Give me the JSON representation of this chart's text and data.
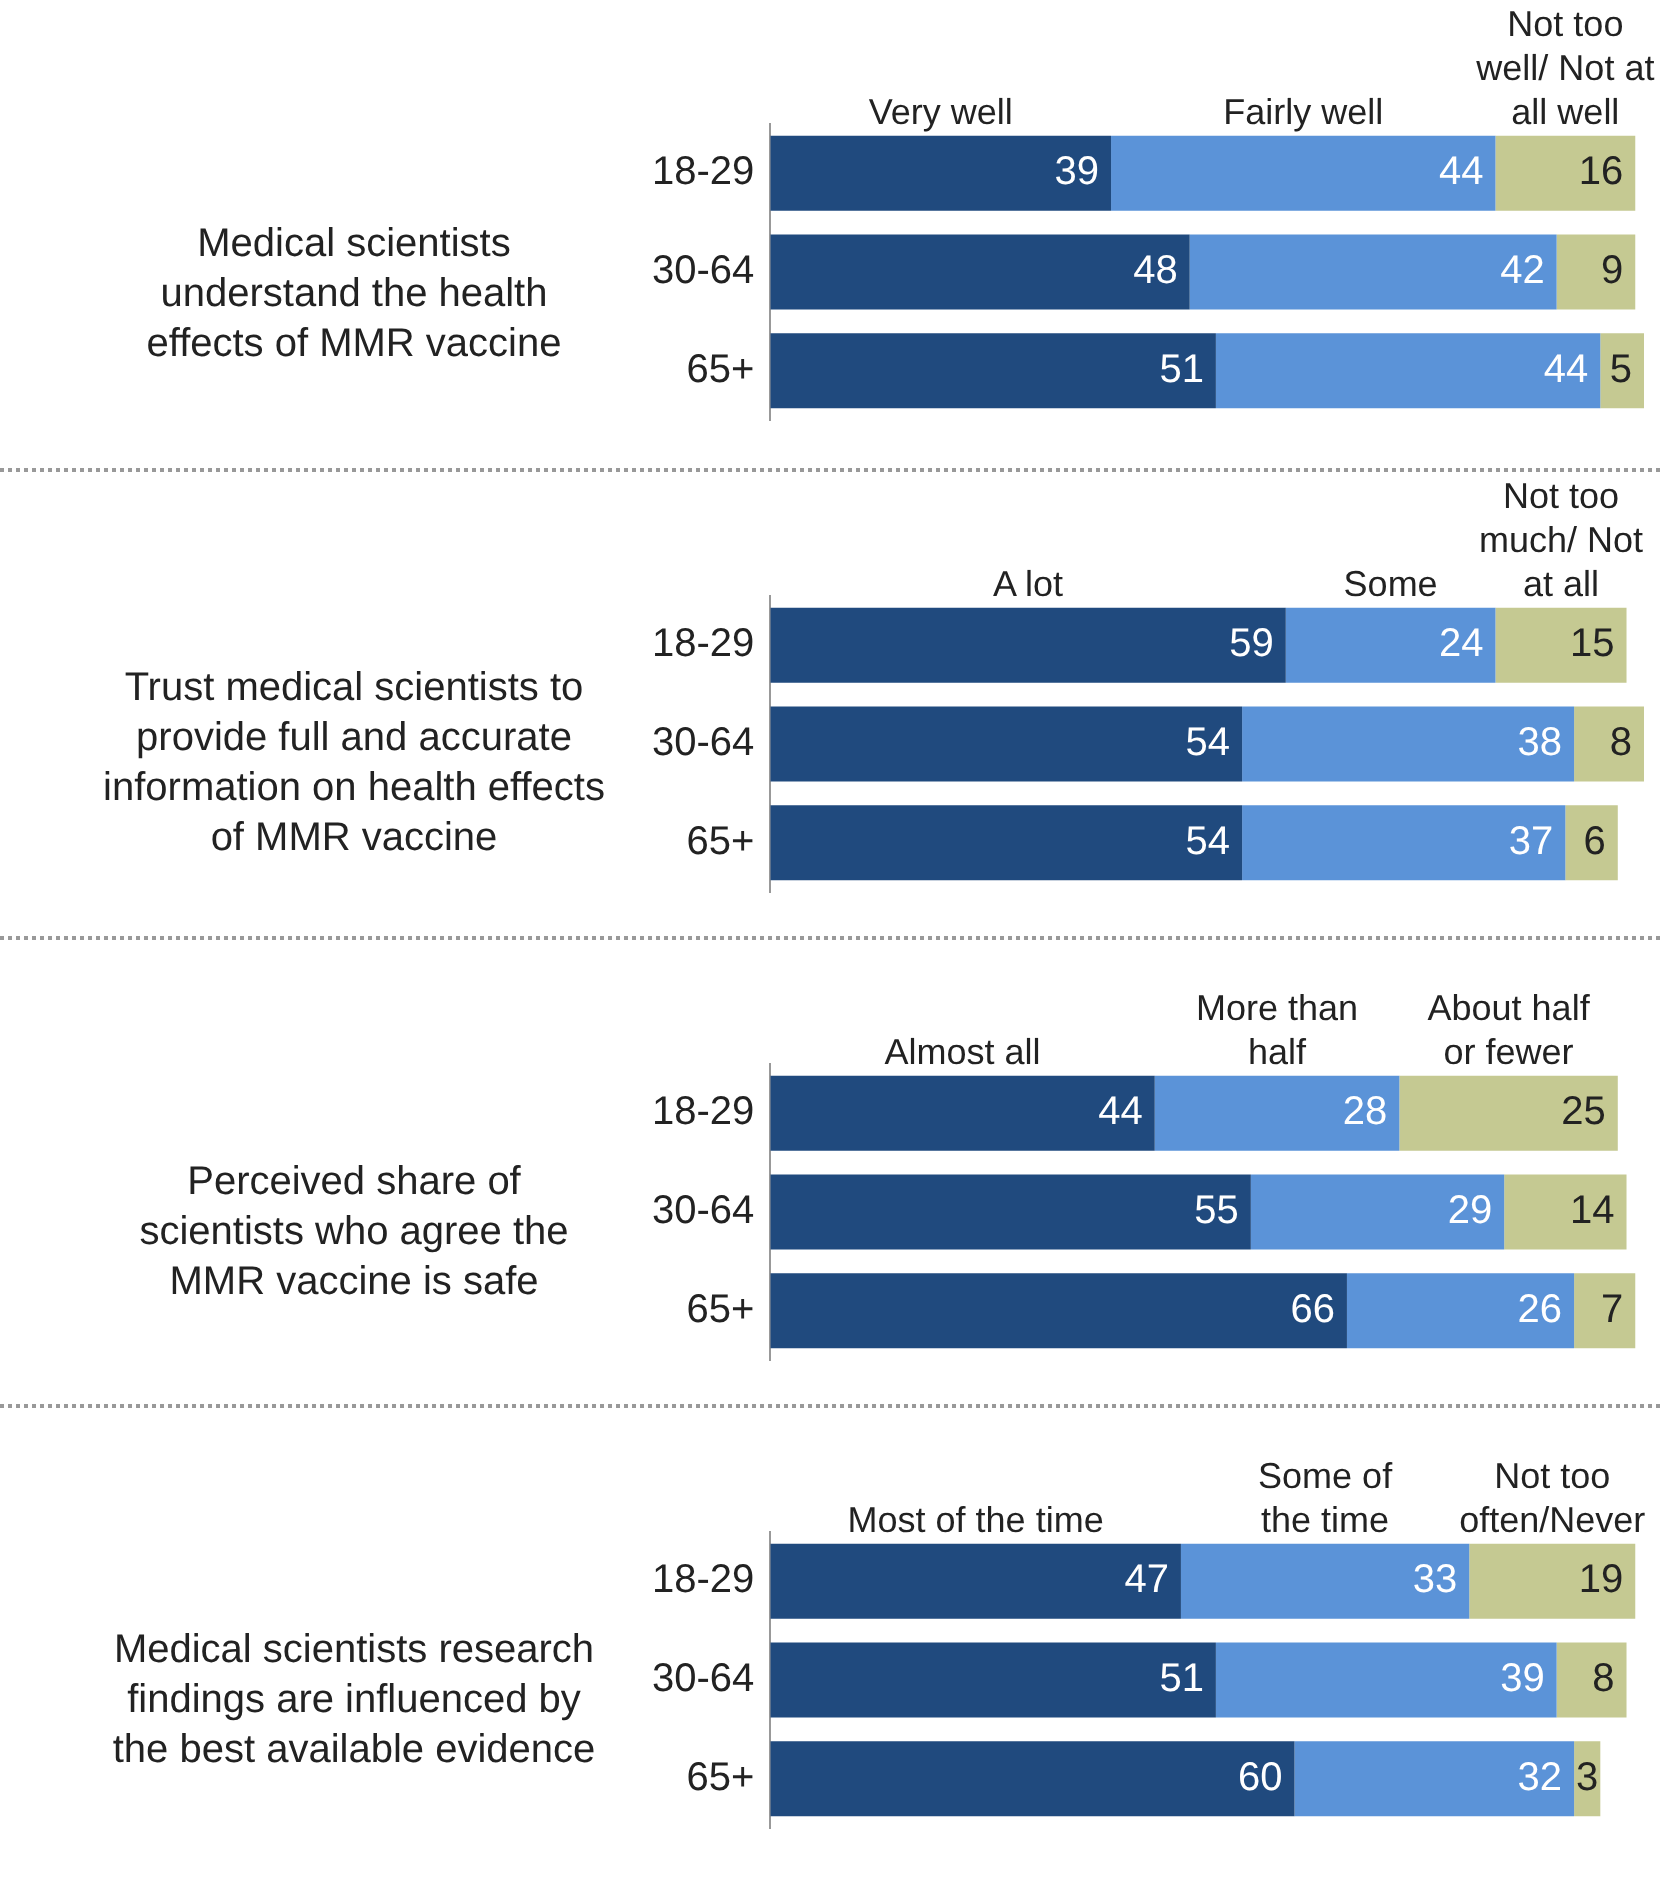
{
  "chart_data": [
    {
      "type": "bar",
      "orientation": "horizontal",
      "stacked": true,
      "data_labels": true,
      "tick_labels": "y",
      "title": "Medical scientists understand the health effects of MMR vaccine",
      "categories": [
        "18-29",
        "30-64",
        "65+"
      ],
      "series": [
        {
          "name": "Very well",
          "color": "#204a7e",
          "values": [
            39,
            48,
            51
          ]
        },
        {
          "name": "Fairly well",
          "color": "#5b93d8",
          "values": [
            44,
            42,
            44
          ]
        },
        {
          "name": "Not too well/ Not at all well",
          "color": "#c5c992",
          "values": [
            16,
            9,
            5
          ]
        }
      ]
    },
    {
      "type": "bar",
      "orientation": "horizontal",
      "stacked": true,
      "data_labels": true,
      "tick_labels": "y",
      "title": "Trust medical scientists to provide full and accurate information on health effects of MMR vaccine",
      "categories": [
        "18-29",
        "30-64",
        "65+"
      ],
      "series": [
        {
          "name": "A lot",
          "color": "#204a7e",
          "values": [
            59,
            54,
            54
          ]
        },
        {
          "name": "Some",
          "color": "#5b93d8",
          "values": [
            24,
            38,
            37
          ]
        },
        {
          "name": "Not too much/ Not at all",
          "color": "#c5c992",
          "values": [
            15,
            8,
            6
          ]
        }
      ]
    },
    {
      "type": "bar",
      "orientation": "horizontal",
      "stacked": true,
      "data_labels": true,
      "tick_labels": "y",
      "title": "Perceived share of scientists who agree the MMR vaccine is safe",
      "categories": [
        "18-29",
        "30-64",
        "65+"
      ],
      "series": [
        {
          "name": "Almost all",
          "color": "#204a7e",
          "values": [
            44,
            55,
            66
          ]
        },
        {
          "name": "More than half",
          "color": "#5b93d8",
          "values": [
            28,
            29,
            26
          ]
        },
        {
          "name": "About half or fewer",
          "color": "#c5c992",
          "values": [
            25,
            14,
            7
          ]
        }
      ]
    },
    {
      "type": "bar",
      "orientation": "horizontal",
      "stacked": true,
      "data_labels": true,
      "tick_labels": "y",
      "title": "Medical scientists research findings are influenced by the best available evidence",
      "categories": [
        "18-29",
        "30-64",
        "65+"
      ],
      "series": [
        {
          "name": "Most of the time",
          "color": "#204a7e",
          "values": [
            47,
            51,
            60
          ]
        },
        {
          "name": "Some of the time",
          "color": "#5b93d8",
          "values": [
            33,
            39,
            32
          ]
        },
        {
          "name": "Not too often/Never",
          "color": "#c5c992",
          "values": [
            19,
            8,
            3
          ]
        }
      ]
    }
  ]
}
